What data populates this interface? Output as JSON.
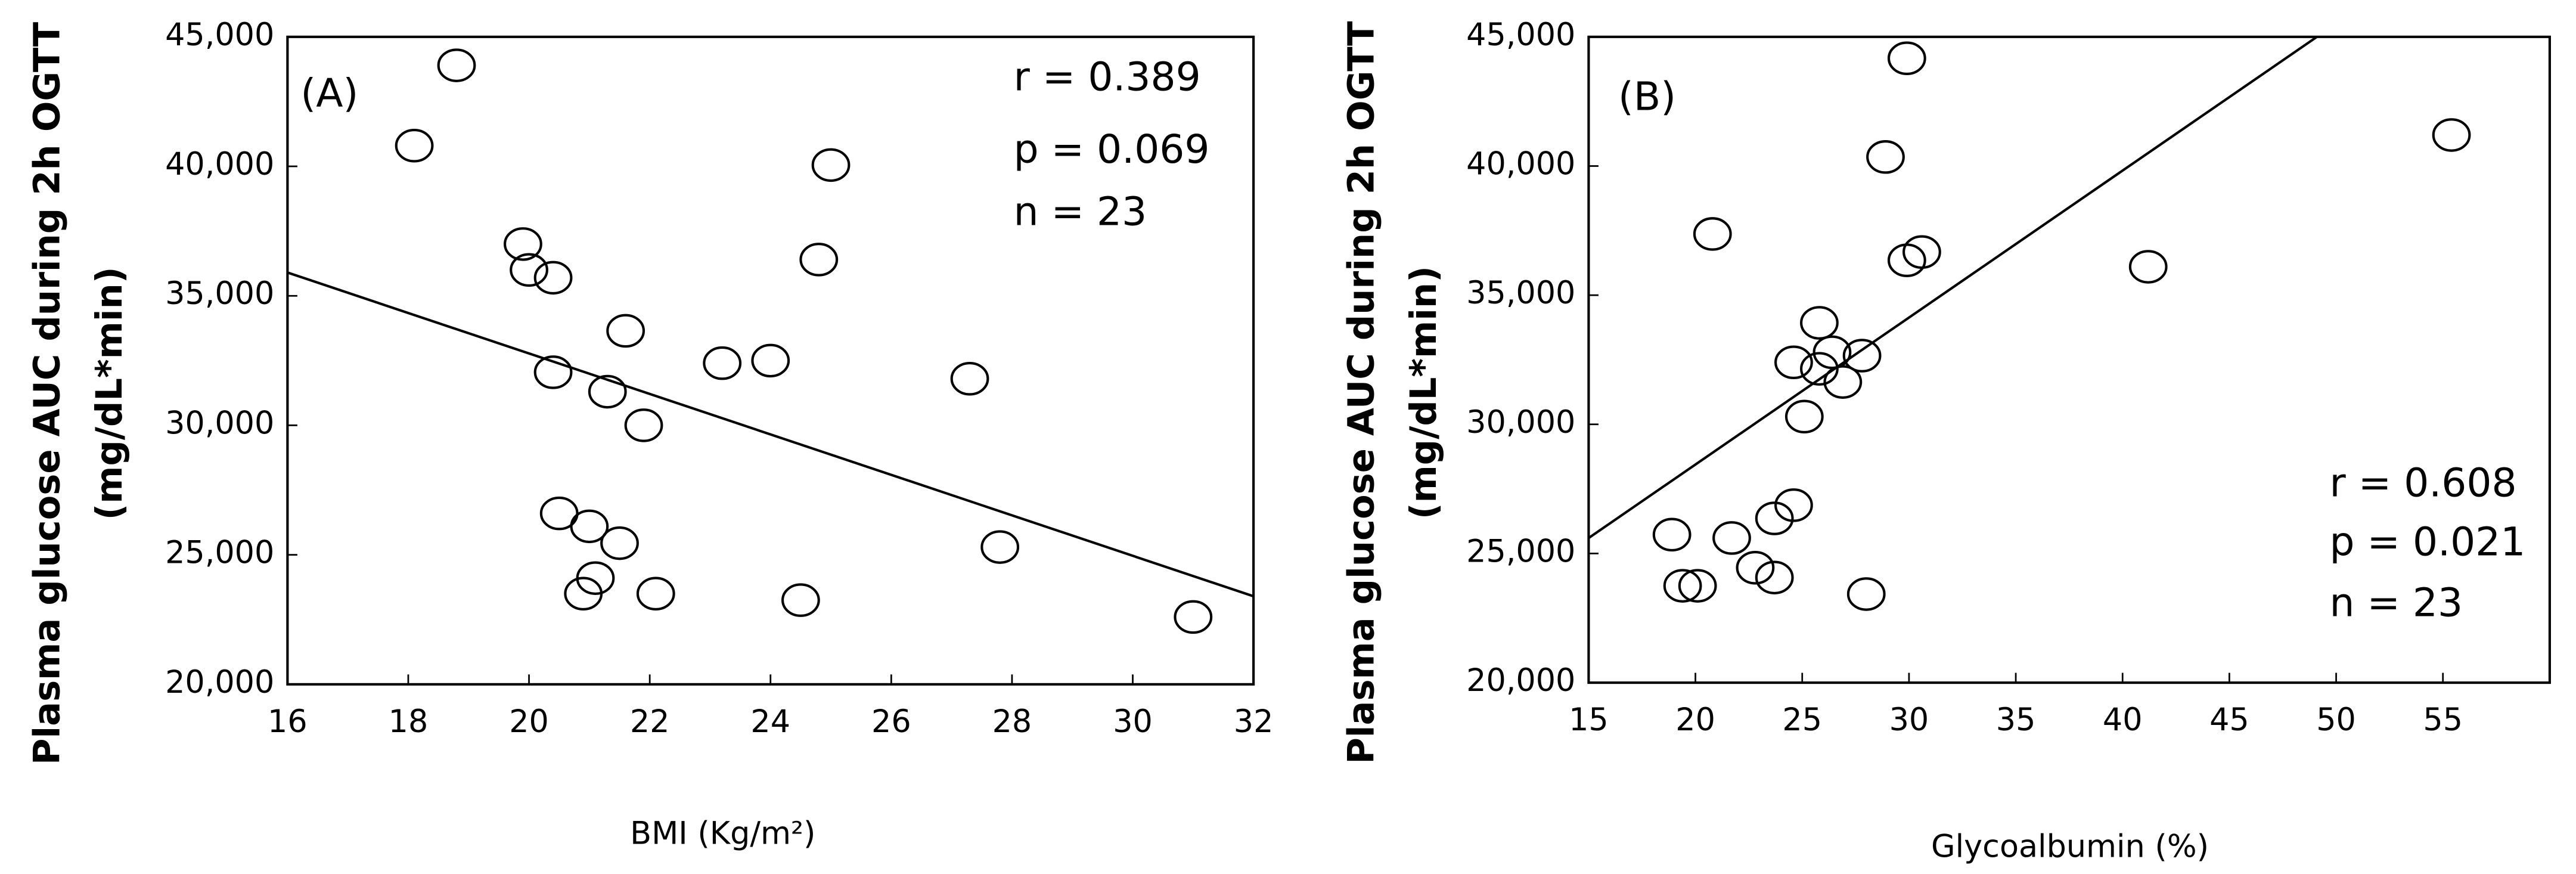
{
  "chart_data": [
    {
      "type": "scatter",
      "annotation_label": "(A)",
      "annotations": [
        "r = 0.389",
        "p = 0.069",
        "n = 23"
      ],
      "x_label": "BMI (Kg/m²)",
      "y_label": [
        "Plasma glucose AUC during 2h OGTT",
        "(mg/dL*min)"
      ],
      "xlim": [
        16,
        32
      ],
      "xticks": [
        16,
        18,
        20,
        22,
        24,
        26,
        28,
        30,
        32
      ],
      "ylim": [
        20000,
        45000
      ],
      "yticks": [
        {
          "value": 20000,
          "label": "20,000"
        },
        {
          "value": 25000,
          "label": "25,000"
        },
        {
          "value": 30000,
          "label": "30,000"
        },
        {
          "value": 35000,
          "label": "35,000"
        },
        {
          "value": 40000,
          "label": "40,000"
        },
        {
          "value": 45000,
          "label": "45,000"
        }
      ],
      "x": [
        18.8,
        18.1,
        25.0,
        24.8,
        19.9,
        20.0,
        20.4,
        21.6,
        23.2,
        24.0,
        20.4,
        21.3,
        27.3,
        21.9,
        20.5,
        21.0,
        21.5,
        27.8,
        21.1,
        20.9,
        22.1,
        24.5,
        31.0
      ],
      "y": [
        43900,
        40800,
        40050,
        36400,
        37000,
        36000,
        35700,
        33650,
        32400,
        32500,
        32050,
        31300,
        31800,
        30000,
        26600,
        26100,
        25450,
        25300,
        24100,
        23500,
        23500,
        23250,
        22600
      ],
      "trend_x": [
        16,
        32
      ],
      "trend_y": [
        35900,
        23400
      ],
      "color": "#000000"
    },
    {
      "type": "scatter",
      "annotation_label": "(B)",
      "annotations": [
        "r = 0.608",
        "p = 0.021",
        "n = 23"
      ],
      "x_label": "Glycoalbumin (%)",
      "y_label": [
        "Plasma glucose AUC during 2h OGTT",
        "(mg/dL*min)"
      ],
      "xlim": [
        15,
        60
      ],
      "xticks": [
        15,
        20,
        25,
        30,
        35,
        40,
        45,
        50,
        55
      ],
      "ylim": [
        20000,
        45000
      ],
      "yticks": [
        {
          "value": 20000,
          "label": "20,000"
        },
        {
          "value": 25000,
          "label": "25,000"
        },
        {
          "value": 30000,
          "label": "30,000"
        },
        {
          "value": 35000,
          "label": "35,000"
        },
        {
          "value": 40000,
          "label": "40,000"
        },
        {
          "value": 45000,
          "label": "45,000"
        }
      ],
      "x": [
        29.9,
        28.9,
        55.4,
        20.8,
        29.9,
        30.6,
        41.2,
        25.8,
        24.6,
        26.4,
        25.8,
        27.8,
        26.9,
        25.1,
        18.9,
        21.7,
        24.6,
        23.7,
        22.8,
        23.7,
        19.4,
        20.1,
        28.0
      ],
      "y": [
        44170,
        40350,
        41200,
        37370,
        36350,
        36670,
        36100,
        33930,
        32400,
        32790,
        32150,
        32660,
        31640,
        30300,
        25730,
        25600,
        26870,
        26360,
        24450,
        24070,
        23750,
        23750,
        23430
      ],
      "trend_x": [
        15,
        49.1
      ],
      "trend_y": [
        25600,
        45000
      ],
      "color": "#000000"
    }
  ]
}
